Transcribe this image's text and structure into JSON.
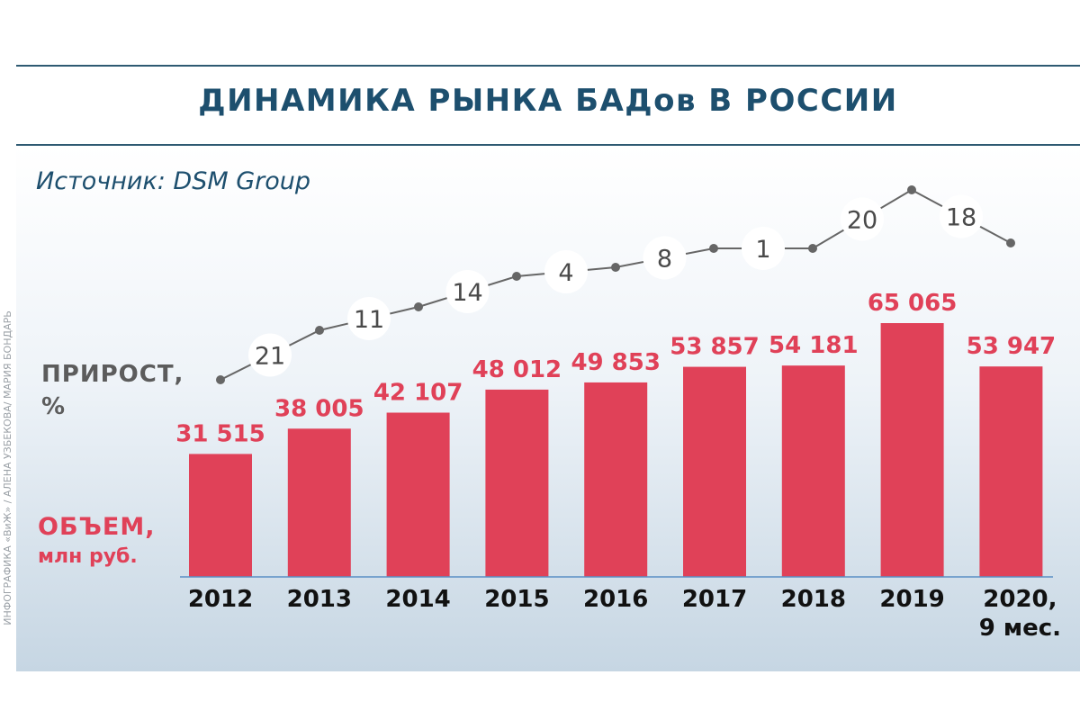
{
  "header": {
    "title": "ДИНАМИКА РЫНКА БАДов В РОССИИ",
    "source": "Источник: DSM Group",
    "credit": "ИНФОГРАФИКА «ВиЖ» / АЛЕНА УЗБЕКОВА/ МАРИЯ БОНДАРЬ"
  },
  "labels": {
    "growth_line1": "ПРИРОСТ,",
    "growth_line2": "%",
    "volume_line1": "ОБЪЕМ,",
    "volume_line2": "млн руб."
  },
  "colors": {
    "bar": "#e04158",
    "bar_value": "#e04158",
    "line": "#666666",
    "title": "#1d4f6e",
    "baseline": "#5a8fc4"
  },
  "chart_data": {
    "type": "bar",
    "categories": [
      "2012",
      "2013",
      "2014",
      "2015",
      "2016",
      "2017",
      "2018",
      "2019",
      "2020,\n9 мес."
    ],
    "series": [
      {
        "name": "ОБЪЕМ, млн руб.",
        "type": "bar",
        "values": [
          31515,
          38005,
          42107,
          48012,
          49853,
          53857,
          54181,
          65065,
          53947
        ],
        "value_labels": [
          "31 515",
          "38 005",
          "42 107",
          "48 012",
          "49 853",
          "53 857",
          "54 181",
          "65 065",
          "53 947"
        ]
      },
      {
        "name": "ПРИРОСТ, %",
        "type": "line",
        "values": [
          null,
          21,
          11,
          14,
          4,
          8,
          1,
          20,
          18
        ],
        "value_labels": [
          "",
          "21",
          "11",
          "14",
          "4",
          "8",
          "1",
          "20",
          "18"
        ]
      }
    ],
    "ylim": [
      0,
      70000
    ],
    "grid": false,
    "legend": "none"
  }
}
